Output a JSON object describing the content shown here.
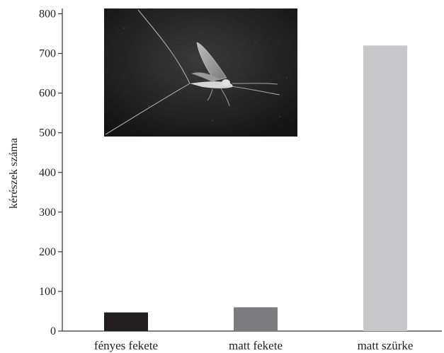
{
  "chart_data": {
    "type": "bar",
    "categories": [
      "fényes fekete",
      "matt fekete",
      "matt szürke"
    ],
    "values": [
      47,
      60,
      720
    ],
    "bar_colors": [
      "#231f20",
      "#7c7c80",
      "#c8c8ca"
    ],
    "xlabel": "",
    "ylabel": "kérészek száma",
    "ylim": [
      0,
      800
    ],
    "yticks": [
      0,
      100,
      200,
      300,
      400,
      500,
      600,
      700,
      800
    ],
    "grid": false,
    "inset_image": "mayfly-photo"
  }
}
